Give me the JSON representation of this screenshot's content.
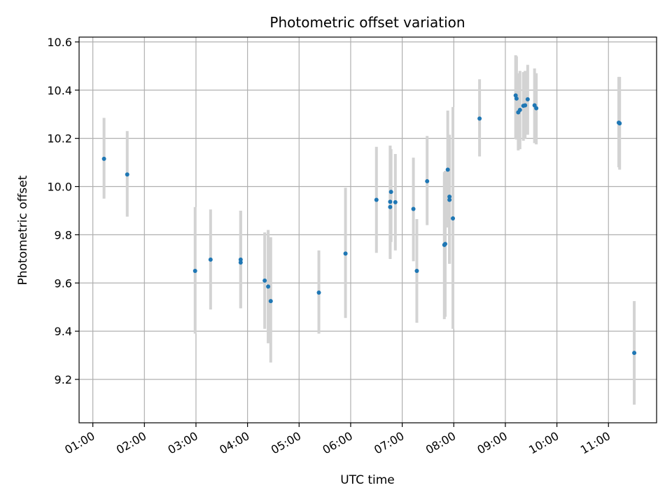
{
  "chart_data": {
    "type": "scatter",
    "title": "Photometric offset variation",
    "xlabel": "UTC time",
    "ylabel": "Photometric offset",
    "x_ticks": [
      "01:00",
      "02:00",
      "03:00",
      "04:00",
      "05:00",
      "06:00",
      "07:00",
      "08:00",
      "09:00",
      "10:00",
      "11:00"
    ],
    "y_ticks": [
      "9.2",
      "9.4",
      "9.6",
      "9.8",
      "10.0",
      "10.2",
      "10.4",
      "10.6"
    ],
    "xlim": [
      "00:44",
      "11:56"
    ],
    "ylim": [
      9.02,
      10.62
    ],
    "grid": true,
    "colors": {
      "marker": "#1f77b4",
      "errorbar": "#d3d3d3",
      "grid": "#b0b0b0"
    },
    "points": [
      {
        "t": "01:13",
        "y": 10.115,
        "lo": 9.95,
        "hi": 10.285
      },
      {
        "t": "01:40",
        "y": 10.05,
        "lo": 9.875,
        "hi": 10.23
      },
      {
        "t": "02:59",
        "y": 9.65,
        "lo": 9.39,
        "hi": 9.915
      },
      {
        "t": "03:17",
        "y": 9.697,
        "lo": 9.49,
        "hi": 9.905
      },
      {
        "t": "03:52",
        "y": 9.697,
        "lo": 9.495,
        "hi": 9.9
      },
      {
        "t": "03:52",
        "y": 9.685,
        "lo": 9.495,
        "hi": 9.9
      },
      {
        "t": "04:20",
        "y": 9.61,
        "lo": 9.41,
        "hi": 9.81
      },
      {
        "t": "04:24",
        "y": 9.585,
        "lo": 9.35,
        "hi": 9.82
      },
      {
        "t": "04:27",
        "y": 9.525,
        "lo": 9.27,
        "hi": 9.79
      },
      {
        "t": "05:23",
        "y": 9.56,
        "lo": 9.39,
        "hi": 9.735
      },
      {
        "t": "05:54",
        "y": 9.722,
        "lo": 9.455,
        "hi": 9.995
      },
      {
        "t": "06:30",
        "y": 9.945,
        "lo": 9.725,
        "hi": 10.165
      },
      {
        "t": "06:46",
        "y": 9.915,
        "lo": 9.7,
        "hi": 10.17
      },
      {
        "t": "06:46",
        "y": 9.937,
        "lo": 9.7,
        "hi": 10.17
      },
      {
        "t": "06:47",
        "y": 9.978,
        "lo": 9.77,
        "hi": 10.155
      },
      {
        "t": "06:52",
        "y": 9.935,
        "lo": 9.735,
        "hi": 10.135
      },
      {
        "t": "07:13",
        "y": 9.907,
        "lo": 9.69,
        "hi": 10.12
      },
      {
        "t": "07:17",
        "y": 9.65,
        "lo": 9.435,
        "hi": 9.865
      },
      {
        "t": "07:29",
        "y": 10.022,
        "lo": 9.84,
        "hi": 10.21
      },
      {
        "t": "07:49",
        "y": 9.758,
        "lo": 9.45,
        "hi": 10.06
      },
      {
        "t": "07:50",
        "y": 9.762,
        "lo": 9.46,
        "hi": 10.065
      },
      {
        "t": "07:53",
        "y": 10.07,
        "lo": 9.83,
        "hi": 10.315
      },
      {
        "t": "07:55",
        "y": 9.958,
        "lo": 9.68,
        "hi": 10.215
      },
      {
        "t": "07:55",
        "y": 9.945,
        "lo": 9.68,
        "hi": 10.2
      },
      {
        "t": "07:59",
        "y": 9.868,
        "lo": 9.41,
        "hi": 10.33
      },
      {
        "t": "08:30",
        "y": 10.282,
        "lo": 10.125,
        "hi": 10.445
      },
      {
        "t": "09:12",
        "y": 10.378,
        "lo": 10.2,
        "hi": 10.545
      },
      {
        "t": "09:13",
        "y": 10.365,
        "lo": 10.195,
        "hi": 10.54
      },
      {
        "t": "09:15",
        "y": 10.308,
        "lo": 10.15,
        "hi": 10.47
      },
      {
        "t": "09:17",
        "y": 10.318,
        "lo": 10.155,
        "hi": 10.48
      },
      {
        "t": "09:21",
        "y": 10.335,
        "lo": 10.19,
        "hi": 10.475
      },
      {
        "t": "09:23",
        "y": 10.337,
        "lo": 10.2,
        "hi": 10.48
      },
      {
        "t": "09:26",
        "y": 10.362,
        "lo": 10.215,
        "hi": 10.505
      },
      {
        "t": "09:34",
        "y": 10.337,
        "lo": 10.18,
        "hi": 10.49
      },
      {
        "t": "09:36",
        "y": 10.325,
        "lo": 10.175,
        "hi": 10.47
      },
      {
        "t": "11:12",
        "y": 10.265,
        "lo": 10.08,
        "hi": 10.455
      },
      {
        "t": "11:13",
        "y": 10.262,
        "lo": 10.07,
        "hi": 10.455
      },
      {
        "t": "11:30",
        "y": 9.31,
        "lo": 9.095,
        "hi": 9.525
      }
    ]
  }
}
